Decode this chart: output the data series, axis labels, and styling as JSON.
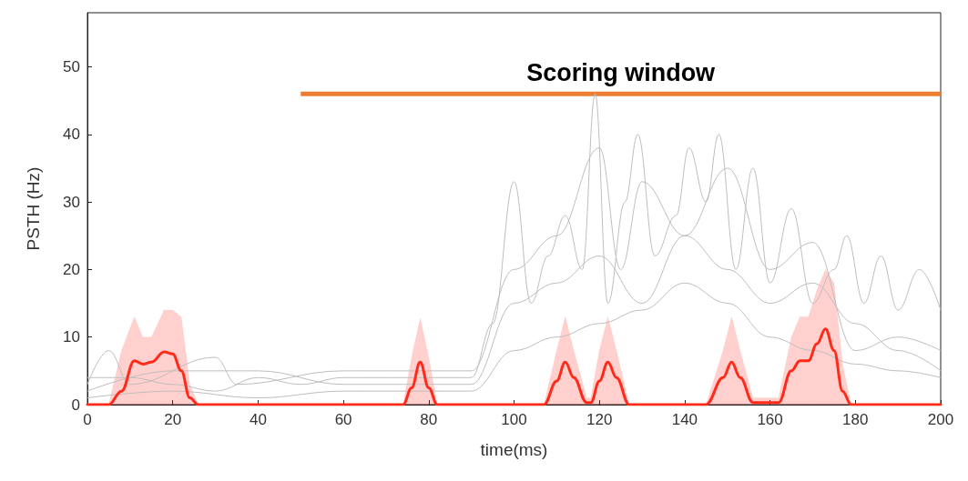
{
  "chart_data": {
    "type": "line",
    "xlabel": "time(ms)",
    "ylabel": "PSTH (Hz)",
    "xlim": [
      0,
      200
    ],
    "xticks": [
      0,
      20,
      40,
      60,
      80,
      100,
      120,
      140,
      160,
      180,
      200
    ],
    "ylim": [
      0,
      58
    ],
    "yticks": [
      0,
      10,
      20,
      30,
      40,
      50
    ],
    "grid": false,
    "marker": "none",
    "line_style": "solid",
    "series": [
      {
        "name": "Scoring window",
        "color": "#ed7d31",
        "x": [
          50,
          200
        ],
        "values": [
          46,
          46
        ]
      },
      {
        "color": "#bdbdbd",
        "x": [
          0,
          10,
          20,
          30,
          40,
          50,
          60,
          70,
          80,
          90,
          95,
          100,
          104,
          108,
          112,
          116,
          119,
          122,
          126,
          129,
          133,
          138,
          141,
          145,
          148,
          152,
          156,
          160,
          165,
          170,
          175,
          178,
          182,
          186,
          190,
          195,
          200
        ],
        "values": [
          4,
          4,
          3,
          2,
          4,
          3,
          4,
          4,
          4,
          4,
          12,
          33,
          15,
          22,
          28,
          20,
          46,
          15,
          30,
          40,
          22,
          28,
          38,
          30,
          40,
          20,
          35,
          18,
          29,
          15,
          20,
          25,
          15,
          22,
          14,
          20,
          14
        ]
      },
      {
        "color": "#bdbdbd",
        "x": [
          0,
          5,
          10,
          30,
          35,
          60,
          90,
          100,
          110,
          120,
          125,
          130,
          140,
          150,
          160,
          170,
          180,
          190,
          200
        ],
        "values": [
          3,
          8,
          3,
          7,
          3,
          5,
          5,
          20,
          25,
          38,
          20,
          33,
          25,
          35,
          20,
          24,
          8,
          10,
          8
        ]
      },
      {
        "color": "#bdbdbd",
        "x": [
          0,
          20,
          40,
          60,
          90,
          100,
          110,
          120,
          130,
          140,
          150,
          160,
          170,
          180,
          190,
          200
        ],
        "values": [
          2,
          5,
          5,
          3,
          3,
          15,
          18,
          22,
          15,
          25,
          20,
          15,
          18,
          12,
          8,
          5
        ]
      },
      {
        "color": "#bdbdbd",
        "x": [
          0,
          20,
          40,
          60,
          90,
          100,
          110,
          120,
          130,
          140,
          150,
          160,
          170,
          180,
          190,
          200
        ],
        "values": [
          1,
          2,
          1,
          2,
          2,
          8,
          10,
          12,
          14,
          18,
          15,
          10,
          8,
          6,
          5,
          4
        ]
      },
      {
        "color": "#ff2a1a",
        "x": [
          0,
          5,
          8,
          11,
          13,
          15,
          18,
          20,
          22,
          24,
          26,
          74,
          76,
          78,
          80,
          82,
          107,
          110,
          112,
          114,
          117,
          118,
          120,
          122,
          124,
          127,
          145,
          149,
          151,
          153,
          156,
          162,
          165,
          167,
          169,
          171,
          173,
          175,
          177,
          179,
          200
        ],
        "values": [
          0,
          0,
          2,
          6.5,
          6,
          6.3,
          7.8,
          7.5,
          5,
          1,
          0,
          0,
          2.5,
          6.3,
          2.5,
          0,
          0,
          3.5,
          6.3,
          4,
          0.3,
          0.3,
          3.5,
          6.3,
          4,
          0,
          0,
          4,
          6.3,
          4,
          0.3,
          0.3,
          5,
          6.5,
          6.5,
          9,
          11.2,
          8,
          2,
          0,
          0
        ],
        "lower": [
          0,
          0,
          0,
          0,
          0,
          0,
          0,
          0,
          0,
          0,
          0,
          0,
          0,
          0,
          0,
          0,
          0,
          0,
          0,
          0,
          0,
          0,
          0,
          0,
          0,
          0,
          0,
          0,
          0,
          0,
          0,
          0,
          0,
          0,
          0,
          0,
          0,
          0,
          0,
          0,
          0
        ],
        "upper": [
          0,
          0,
          8,
          13,
          10,
          10,
          14,
          14,
          13,
          3,
          0,
          0,
          7,
          12.8,
          7,
          0,
          0,
          8,
          13,
          8,
          1,
          1,
          8,
          13,
          8,
          0,
          0,
          8,
          13,
          8,
          1,
          1,
          10,
          13,
          13,
          17,
          20,
          18,
          6,
          0,
          0
        ]
      }
    ]
  }
}
